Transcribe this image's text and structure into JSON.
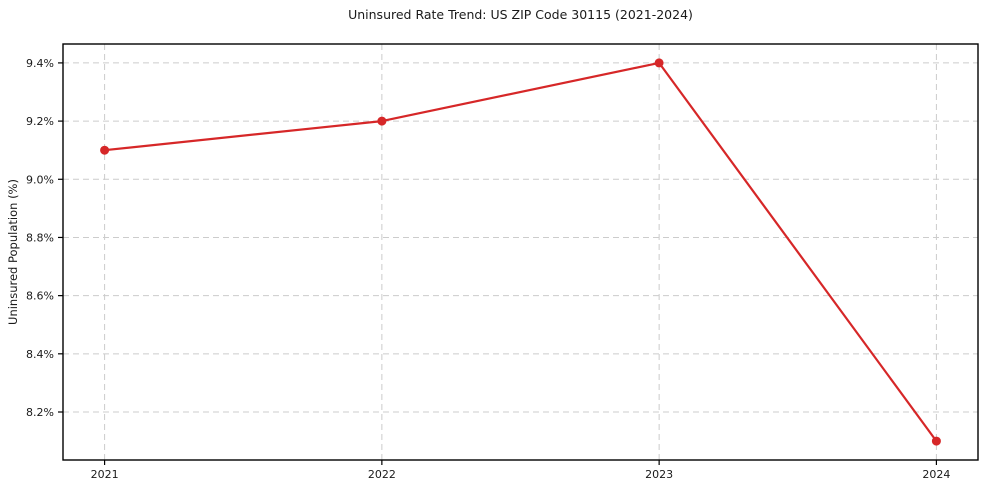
{
  "chart_data": {
    "type": "line",
    "title": "Uninsured Rate Trend: US ZIP Code 30115 (2021-2024)",
    "xlabel": "",
    "ylabel": "Uninsured Population (%)",
    "x": [
      2021,
      2022,
      2023,
      2024
    ],
    "x_tick_labels": [
      "2021",
      "2022",
      "2023",
      "2024"
    ],
    "series": [
      {
        "name": "Uninsured rate",
        "values": [
          9.1,
          9.2,
          9.4,
          8.1
        ],
        "color": "#d62728",
        "marker": "circle",
        "line_width": 2.2,
        "marker_radius": 4.5
      }
    ],
    "y_tick_values": [
      8.2,
      8.4,
      8.6,
      8.8,
      9.0,
      9.2,
      9.4
    ],
    "y_tick_labels": [
      "8.2%",
      "8.4%",
      "8.6%",
      "8.8%",
      "9.0%",
      "9.2%",
      "9.4%"
    ],
    "xlim": [
      2020.85,
      2024.15
    ],
    "ylim": [
      8.035,
      9.465
    ],
    "grid": true,
    "grid_style": "dashed",
    "grid_color": "#cccccc",
    "axis_color": "#000000",
    "tick_color": "#000000",
    "background": "#ffffff",
    "legend_position": "none"
  }
}
